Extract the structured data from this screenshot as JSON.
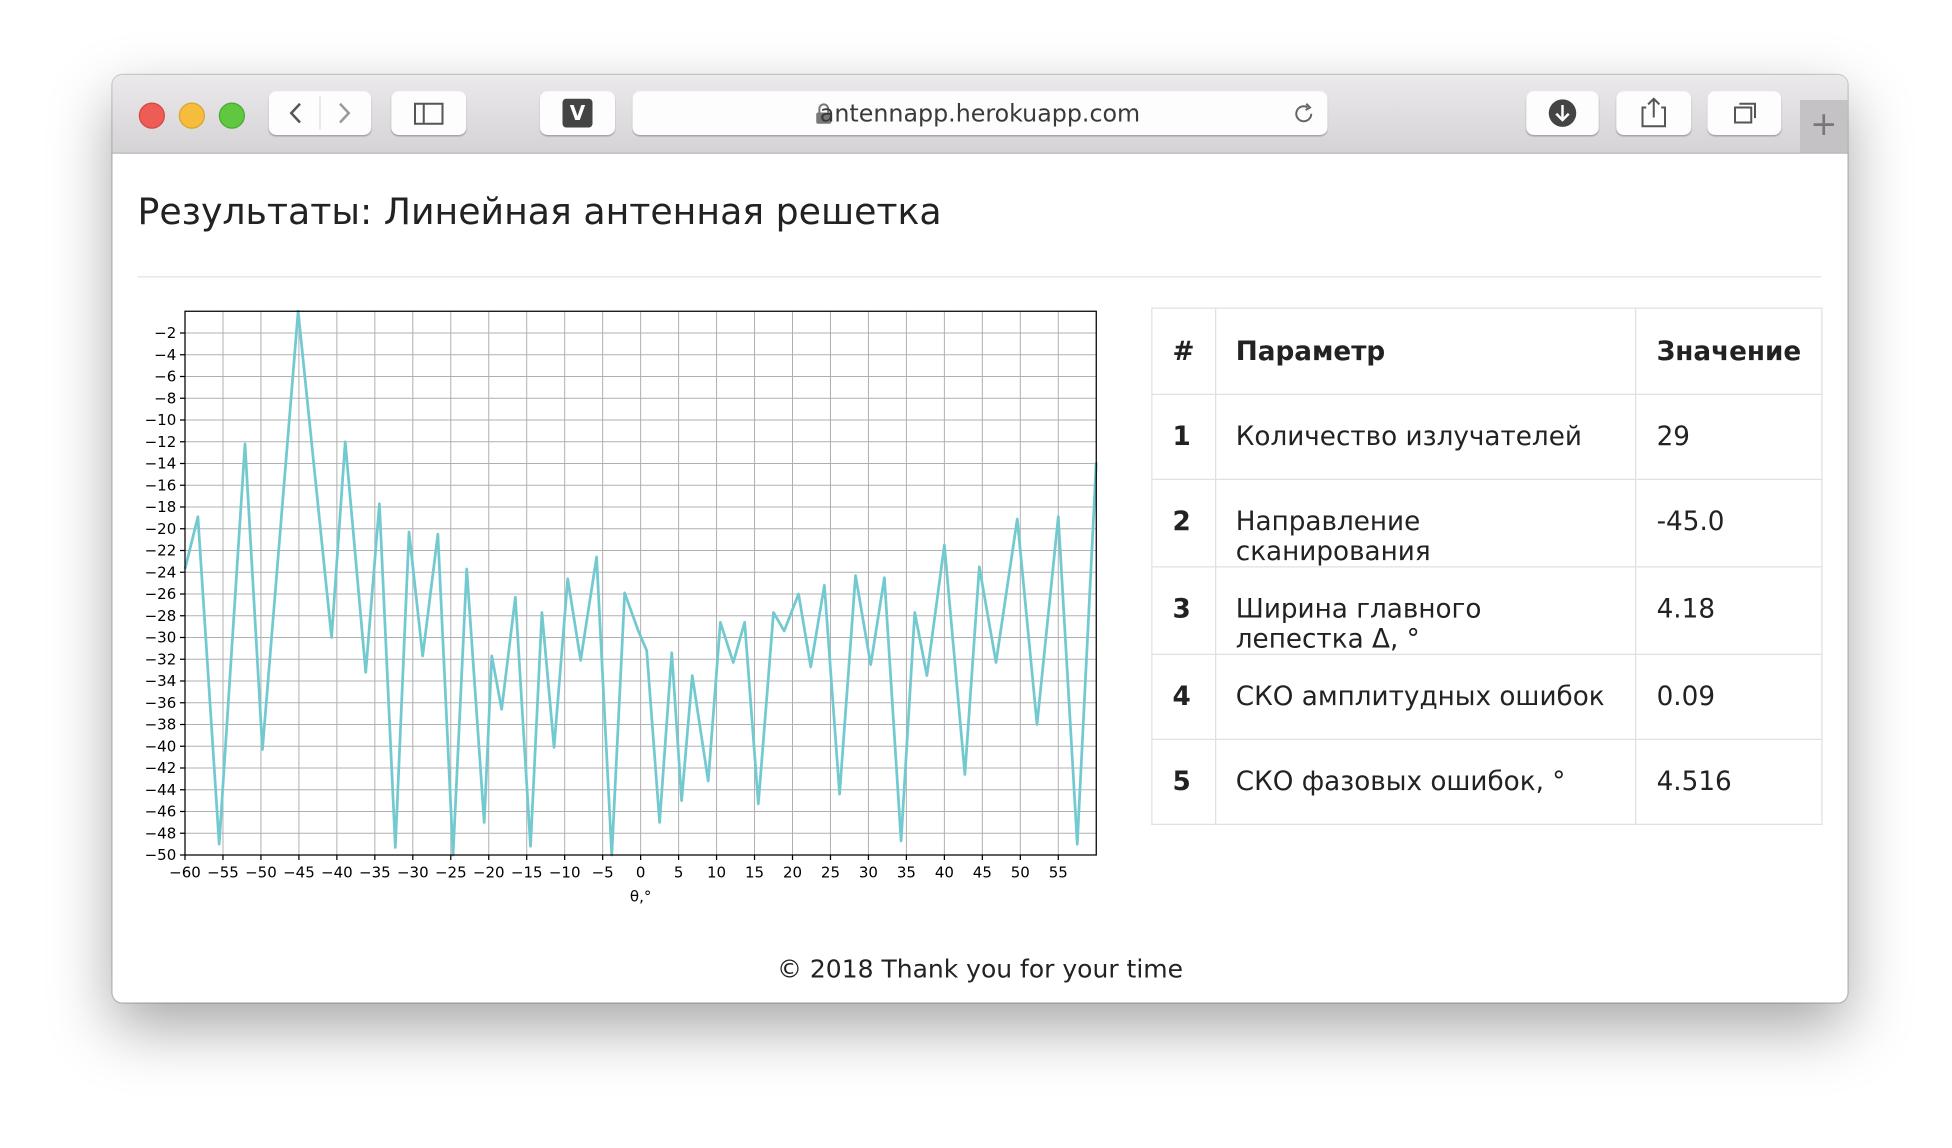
{
  "browser": {
    "url": "antennapp.herokuapp.com",
    "extension_label": "V"
  },
  "heading": "Результаты: Линейная антенная решетка",
  "chart_data": {
    "type": "line",
    "xlabel": "θ,°",
    "x": [
      -60,
      -58.3,
      -55.5,
      -52.1,
      -49.8,
      -45.1,
      -40.7,
      -38.9,
      -36.2,
      -34.4,
      -32.3,
      -30.5,
      -28.7,
      -26.7,
      -24.7,
      -22.9,
      -20.6,
      -19.6,
      -18.3,
      -16.5,
      -14.5,
      -13,
      -11.4,
      -9.6,
      -7.9,
      -5.8,
      -3.8,
      -2.1,
      -0.3,
      0.8,
      2.5,
      4.1,
      5.4,
      6.8,
      8.9,
      10.5,
      12.2,
      13.7,
      15.5,
      17.5,
      18.9,
      20.8,
      22.4,
      24.2,
      26.2,
      28.3,
      30.3,
      32.1,
      34.3,
      36.1,
      37.7,
      40,
      42.7,
      44.6,
      46.8,
      49.6,
      52.2,
      55,
      57.5,
      60
    ],
    "series": [
      {
        "color": "#72cad0",
        "values": [
          -23.7,
          -18.9,
          -49,
          -12.2,
          -40.3,
          0,
          -30,
          -12,
          -33.2,
          -17.7,
          -49.3,
          -20.3,
          -31.7,
          -20.5,
          -50,
          -23.7,
          -47,
          -31.7,
          -36.6,
          -26.3,
          -49.2,
          -27.7,
          -40.1,
          -24.6,
          -32.1,
          -22.6,
          -50,
          -25.9,
          -29.4,
          -31.2,
          -47,
          -31.4,
          -45,
          -33.5,
          -43.2,
          -28.6,
          -32.3,
          -28.6,
          -45.3,
          -27.7,
          -29.4,
          -26,
          -32.7,
          -25.2,
          -44.4,
          -24.3,
          -32.5,
          -24.5,
          -48.7,
          -27.7,
          -33.5,
          -21.5,
          -42.6,
          -23.5,
          -32.3,
          -19.1,
          -38,
          -18.9,
          -49,
          -13.9
        ]
      }
    ],
    "xlim": [
      -60,
      60
    ],
    "xticks": [
      {
        "value": -60,
        "label": "−60"
      },
      {
        "value": -55,
        "label": "−55"
      },
      {
        "value": -50,
        "label": "−50"
      },
      {
        "value": -45,
        "label": "−45"
      },
      {
        "value": -40,
        "label": "−40"
      },
      {
        "value": -35,
        "label": "−35"
      },
      {
        "value": -30,
        "label": "−30"
      },
      {
        "value": -25,
        "label": "−25"
      },
      {
        "value": -20,
        "label": "−20"
      },
      {
        "value": -15,
        "label": "−15"
      },
      {
        "value": -10,
        "label": "−10"
      },
      {
        "value": -5,
        "label": "−5"
      },
      0,
      5,
      10,
      15,
      20,
      25,
      30,
      35,
      40,
      45,
      50,
      55
    ],
    "ylim": [
      -50,
      0
    ],
    "yticks": [
      {
        "value": -2,
        "label": "−2"
      },
      {
        "value": -4,
        "label": "−4"
      },
      {
        "value": -6,
        "label": "−6"
      },
      {
        "value": -8,
        "label": "−8"
      },
      {
        "value": -10,
        "label": "−10"
      },
      {
        "value": -12,
        "label": "−12"
      },
      {
        "value": -14,
        "label": "−14"
      },
      {
        "value": -16,
        "label": "−16"
      },
      {
        "value": -18,
        "label": "−18"
      },
      {
        "value": -20,
        "label": "−20"
      },
      {
        "value": -22,
        "label": "−22"
      },
      {
        "value": -24,
        "label": "−24"
      },
      {
        "value": -26,
        "label": "−26"
      },
      {
        "value": -28,
        "label": "−28"
      },
      {
        "value": -30,
        "label": "−30"
      },
      {
        "value": -32,
        "label": "−32"
      },
      {
        "value": -34,
        "label": "−34"
      },
      {
        "value": -36,
        "label": "−36"
      },
      {
        "value": -38,
        "label": "−38"
      },
      {
        "value": -40,
        "label": "−40"
      },
      {
        "value": -42,
        "label": "−42"
      },
      {
        "value": -44,
        "label": "−44"
      },
      {
        "value": -46,
        "label": "−46"
      },
      {
        "value": -48,
        "label": "−48"
      },
      {
        "value": -50,
        "label": "−50"
      }
    ],
    "grid": true
  },
  "table": {
    "header": [
      "#",
      "Параметр",
      "Значение"
    ],
    "rows": [
      [
        "1",
        "Количество излучателей",
        "29"
      ],
      [
        "2",
        "Направление сканирования",
        "-45.0"
      ],
      [
        "3",
        "Ширина главного лепестка Δ, °",
        "4.18"
      ],
      [
        "4",
        "СКО амплитудных ошибок",
        "0.09"
      ],
      [
        "5",
        "СКО фазовых ошибок, °",
        "4.516"
      ]
    ]
  },
  "footer": "© 2018 Thank you for your time"
}
